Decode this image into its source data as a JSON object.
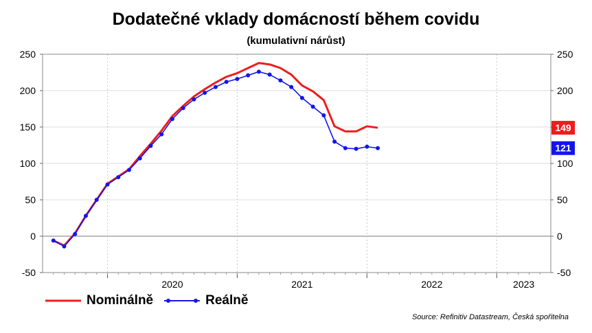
{
  "title": "Dodatečné vklady domácností během covidu",
  "subtitle": "(kumulativní nárůst)",
  "source": "Source: Refinitiv Datastream, Česká spořitelna",
  "chart_data": {
    "type": "line",
    "title": "Dodatečné vklady domácností během covidu",
    "subtitle": "(kumulativní nárůst)",
    "x_tick_labels": [
      "2020",
      "2021",
      "2022",
      "2023"
    ],
    "x_range": [
      "2019-07",
      "2023-06"
    ],
    "y_ticks": [
      -50,
      0,
      50,
      100,
      150,
      200,
      250
    ],
    "ylim": [
      -50,
      250
    ],
    "grid": true,
    "legend_position": "bottom-left",
    "x": [
      "2019-08",
      "2019-09",
      "2019-10",
      "2019-11",
      "2019-12",
      "2020-01",
      "2020-02",
      "2020-03",
      "2020-04",
      "2020-05",
      "2020-06",
      "2020-07",
      "2020-08",
      "2020-09",
      "2020-10",
      "2020-11",
      "2020-12",
      "2021-01",
      "2021-02",
      "2021-03",
      "2021-04",
      "2021-05",
      "2021-06",
      "2021-07",
      "2021-08",
      "2021-09",
      "2021-10",
      "2021-11",
      "2021-12",
      "2022-01",
      "2022-02"
    ],
    "series": [
      {
        "name": "Nominálně",
        "color": "#ee1c1c",
        "values": [
          -6,
          -13,
          4,
          28,
          50,
          72,
          82,
          92,
          110,
          127,
          145,
          165,
          179,
          192,
          202,
          211,
          219,
          224,
          231,
          238,
          236,
          231,
          222,
          207,
          199,
          187,
          151,
          144,
          144,
          151,
          149
        ]
      },
      {
        "name": "Reálně",
        "color": "#1414ee",
        "values": [
          -6,
          -14,
          3,
          28,
          50,
          71,
          81,
          91,
          107,
          124,
          140,
          161,
          176,
          188,
          197,
          205,
          212,
          216,
          221,
          226,
          222,
          214,
          205,
          190,
          178,
          166,
          130,
          121,
          120,
          123,
          121
        ]
      }
    ],
    "end_labels": [
      {
        "series": "Nominálně",
        "text": "149",
        "color": "#ee1c1c"
      },
      {
        "series": "Reálně",
        "text": "121",
        "color": "#1414ee"
      }
    ]
  }
}
